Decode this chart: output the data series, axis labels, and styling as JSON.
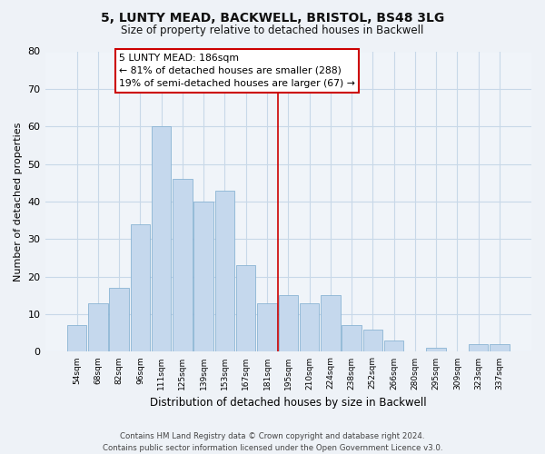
{
  "title": "5, LUNTY MEAD, BACKWELL, BRISTOL, BS48 3LG",
  "subtitle": "Size of property relative to detached houses in Backwell",
  "xlabel": "Distribution of detached houses by size in Backwell",
  "ylabel": "Number of detached properties",
  "bar_labels": [
    "54sqm",
    "68sqm",
    "82sqm",
    "96sqm",
    "111sqm",
    "125sqm",
    "139sqm",
    "153sqm",
    "167sqm",
    "181sqm",
    "195sqm",
    "210sqm",
    "224sqm",
    "238sqm",
    "252sqm",
    "266sqm",
    "280sqm",
    "295sqm",
    "309sqm",
    "323sqm",
    "337sqm"
  ],
  "bar_values": [
    7,
    13,
    17,
    34,
    60,
    46,
    40,
    43,
    23,
    13,
    15,
    13,
    15,
    7,
    6,
    3,
    0,
    1,
    0,
    2,
    2
  ],
  "bar_color": "#c5d8ed",
  "bar_edge_color": "#8ab4d4",
  "property_line_x": 9.5,
  "property_line_color": "#cc0000",
  "annotation_line1": "5 LUNTY MEAD: 186sqm",
  "annotation_line2": "← 81% of detached houses are smaller (288)",
  "annotation_line3": "19% of semi-detached houses are larger (67) →",
  "annotation_box_color": "#ffffff",
  "annotation_box_edge": "#cc0000",
  "ylim": [
    0,
    80
  ],
  "yticks": [
    0,
    10,
    20,
    30,
    40,
    50,
    60,
    70,
    80
  ],
  "footnote": "Contains HM Land Registry data © Crown copyright and database right 2024.\nContains public sector information licensed under the Open Government Licence v3.0.",
  "bg_color": "#eef2f7",
  "plot_bg_color": "#f0f4f9",
  "grid_color": "#c8d8e8"
}
